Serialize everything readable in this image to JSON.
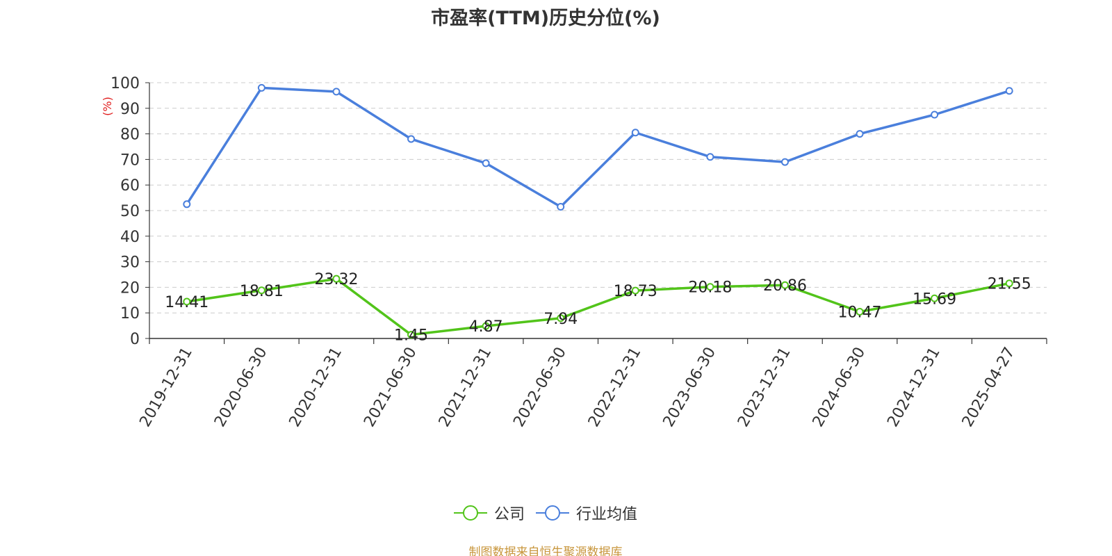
{
  "chart_data": {
    "type": "line",
    "title": "市盈率(TTM)历史分位(%)",
    "ylabel": "(%)",
    "ylim": [
      0,
      100
    ],
    "yticks": [
      0,
      10,
      20,
      30,
      40,
      50,
      60,
      70,
      80,
      90,
      100
    ],
    "grid": true,
    "legend_position": "bottom",
    "categories": [
      "2019-12-31",
      "2020-06-30",
      "2020-12-31",
      "2021-06-30",
      "2021-12-31",
      "2022-06-30",
      "2022-12-31",
      "2023-06-30",
      "2023-12-31",
      "2024-06-30",
      "2024-12-31",
      "2025-04-27"
    ],
    "series": [
      {
        "name": "公司",
        "color": "#52c41a",
        "show_labels": true,
        "values": [
          14.41,
          18.81,
          23.32,
          1.45,
          4.87,
          7.94,
          18.73,
          20.18,
          20.86,
          10.47,
          15.69,
          21.55
        ]
      },
      {
        "name": "行业均值",
        "color": "#4a7fdc",
        "show_labels": false,
        "values": [
          52.5,
          98,
          96.5,
          78,
          68.5,
          51.5,
          80.5,
          71,
          69,
          80,
          87.5,
          96.8
        ]
      }
    ],
    "source": "制图数据来自恒生聚源数据库"
  }
}
